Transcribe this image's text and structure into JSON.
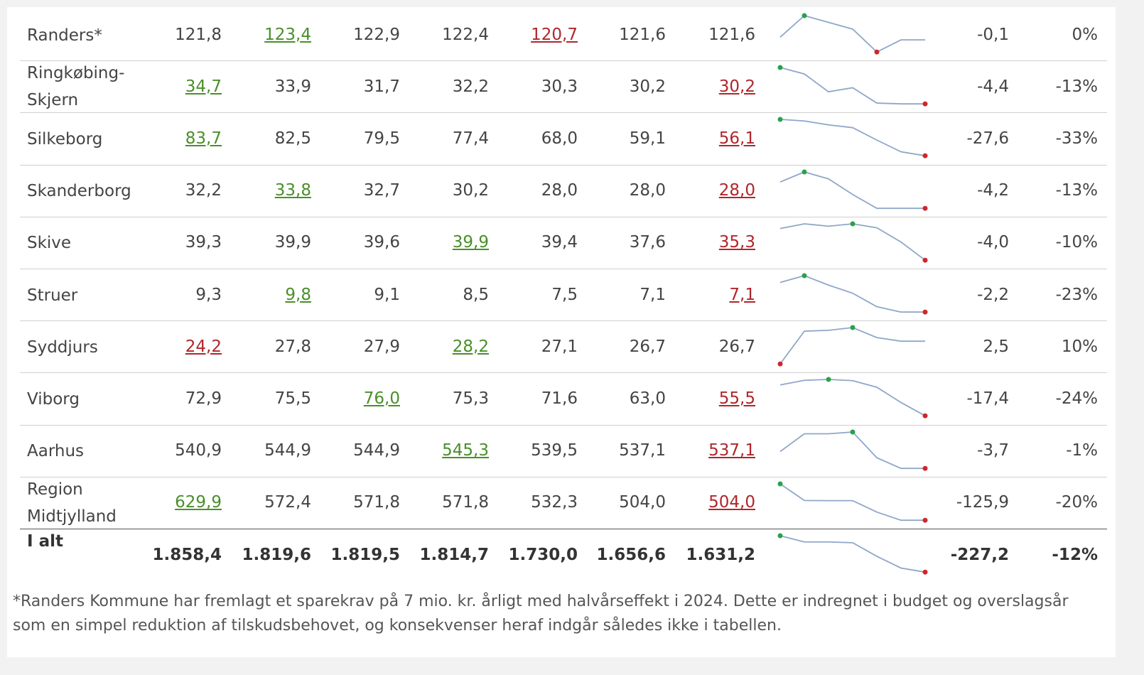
{
  "table": {
    "rows": [
      {
        "name": "Randers*",
        "values": [
          "121,8",
          "123,4",
          "122,9",
          "122,4",
          "120,7",
          "121,6",
          "121,6"
        ],
        "change": "-0,1",
        "pct": "0%"
      },
      {
        "name": "Ringkøbing-Skjern",
        "values": [
          "34,7",
          "33,9",
          "31,7",
          "32,2",
          "30,3",
          "30,2",
          "30,2"
        ],
        "change": "-4,4",
        "pct": "-13%"
      },
      {
        "name": "Silkeborg",
        "values": [
          "83,7",
          "82,5",
          "79,5",
          "77,4",
          "68,0",
          "59,1",
          "56,1"
        ],
        "change": "-27,6",
        "pct": "-33%"
      },
      {
        "name": "Skanderborg",
        "values": [
          "32,2",
          "33,8",
          "32,7",
          "30,2",
          "28,0",
          "28,0",
          "28,0"
        ],
        "change": "-4,2",
        "pct": "-13%"
      },
      {
        "name": "Skive",
        "values": [
          "39,3",
          "39,9",
          "39,6",
          "39,9",
          "39,4",
          "37,6",
          "35,3"
        ],
        "change": "-4,0",
        "pct": "-10%"
      },
      {
        "name": "Struer",
        "values": [
          "9,3",
          "9,8",
          "9,1",
          "8,5",
          "7,5",
          "7,1",
          "7,1"
        ],
        "change": "-2,2",
        "pct": "-23%"
      },
      {
        "name": "Syddjurs",
        "values": [
          "24,2",
          "27,8",
          "27,9",
          "28,2",
          "27,1",
          "26,7",
          "26,7"
        ],
        "change": "2,5",
        "pct": "10%"
      },
      {
        "name": "Viborg",
        "values": [
          "72,9",
          "75,5",
          "76,0",
          "75,3",
          "71,6",
          "63,0",
          "55,5"
        ],
        "change": "-17,4",
        "pct": "-24%"
      },
      {
        "name": "Aarhus",
        "values": [
          "540,9",
          "544,9",
          "544,9",
          "545,3",
          "539,5",
          "537,1",
          "537,1"
        ],
        "change": "-3,7",
        "pct": "-1%"
      },
      {
        "name": "Region Midtjylland",
        "values": [
          "629,9",
          "572,4",
          "571,8",
          "571,8",
          "532,3",
          "504,0",
          "504,0"
        ],
        "change": "-125,9",
        "pct": "-20%"
      }
    ],
    "total": {
      "name": "I alt",
      "values": [
        "1.858,4",
        "1.819,6",
        "1.819,5",
        "1.814,7",
        "1.730,0",
        "1.656,6",
        "1.631,2"
      ],
      "change": "-227,2",
      "pct": "-12%"
    }
  },
  "footnote": "*Randers Kommune har fremlagt et sparekrav på 7 mio. kr. årligt med halvårseffekt i 2024. Dette er indregnet i budget og overslagsår som en simpel reduktion af tilskudsbehovet, og konsekvenser heraf indgår således ikke i tabellen."
}
